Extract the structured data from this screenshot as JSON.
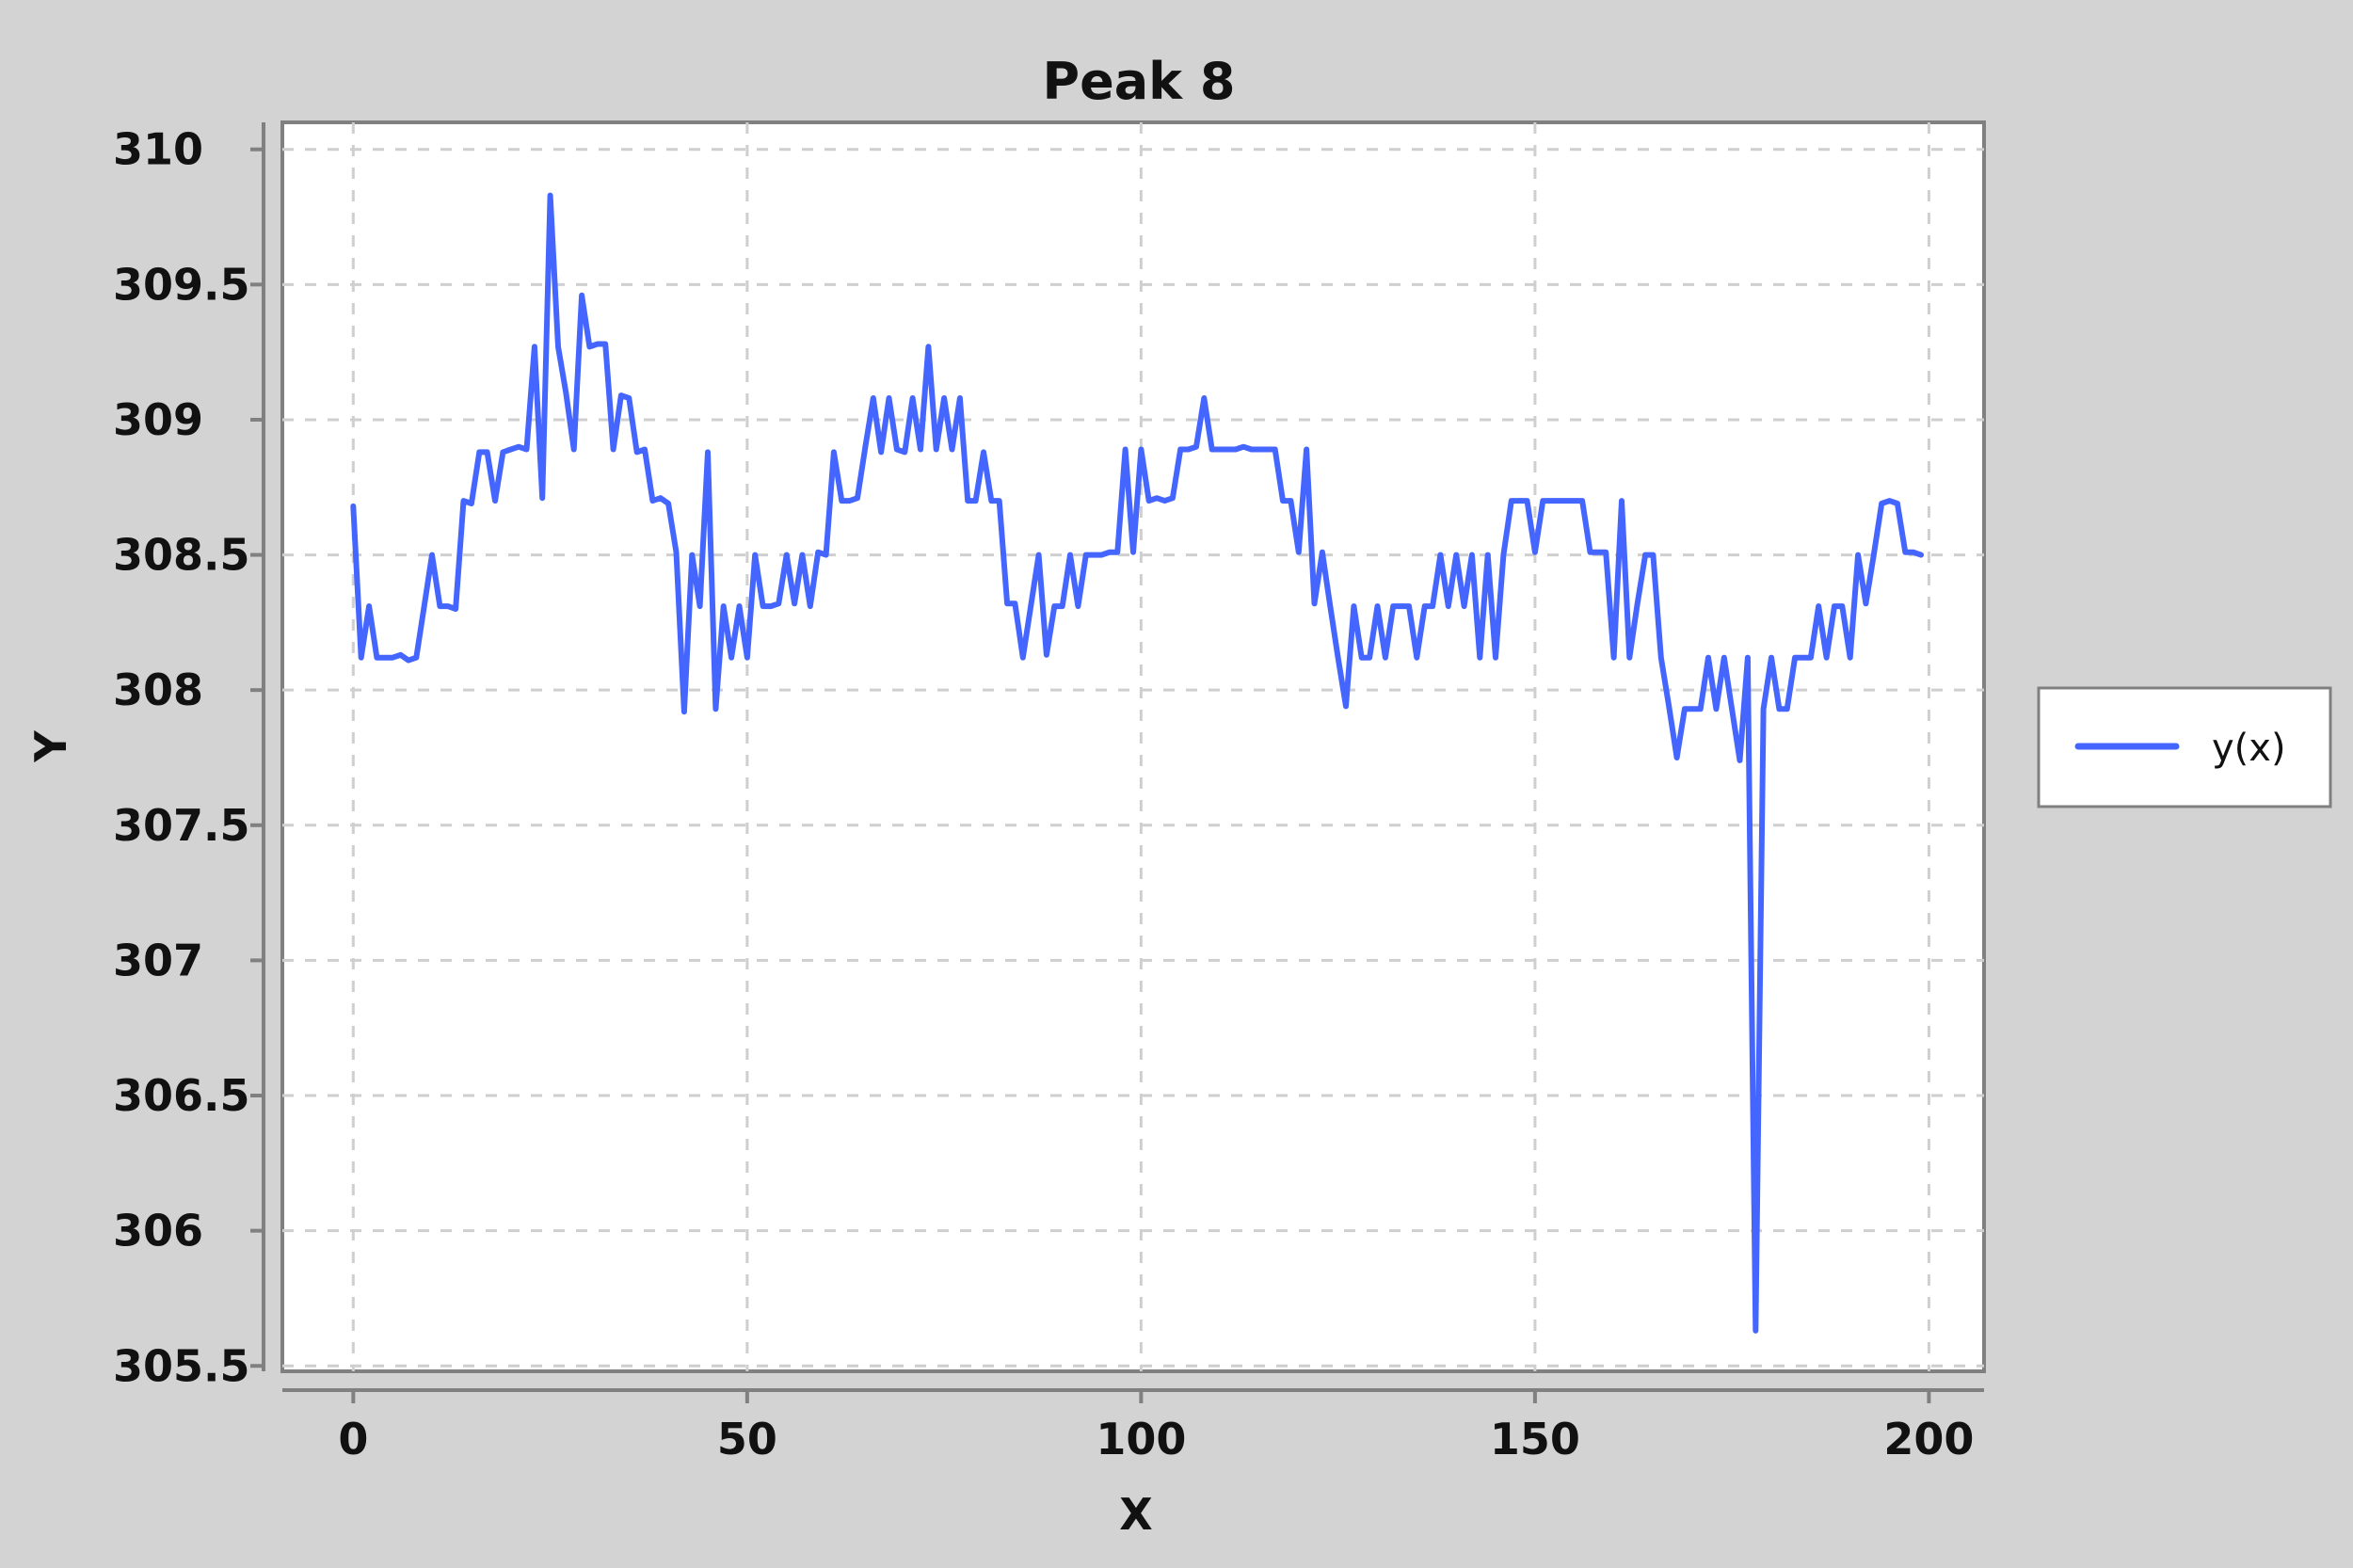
{
  "chart_data": {
    "type": "line",
    "title": "Peak 8",
    "xlabel": "X",
    "ylabel": "Y",
    "xlim": [
      -9,
      207
    ],
    "ylim": [
      305.48,
      310.1
    ],
    "xticks": [
      0,
      50,
      100,
      150,
      200
    ],
    "yticks": [
      305.5,
      306,
      306.5,
      307,
      307.5,
      308,
      308.5,
      309,
      309.5,
      310
    ],
    "xtick_labels": [
      "0",
      "50",
      "100",
      "150",
      "200"
    ],
    "ytick_labels": [
      "305.5",
      "306",
      "306.5",
      "307",
      "307.5",
      "308",
      "308.5",
      "309",
      "309.5",
      "310"
    ],
    "grid": true,
    "legend_position": "right",
    "series": [
      {
        "name": "y(x)",
        "color": "#4466ff",
        "x": [
          0,
          1,
          2,
          3,
          4,
          5,
          6,
          7,
          8,
          9,
          10,
          11,
          12,
          13,
          14,
          15,
          16,
          17,
          18,
          19,
          20,
          21,
          22,
          23,
          24,
          25,
          26,
          27,
          28,
          29,
          30,
          31,
          32,
          33,
          34,
          35,
          36,
          37,
          38,
          39,
          40,
          41,
          42,
          43,
          44,
          45,
          46,
          47,
          48,
          49,
          50,
          51,
          52,
          53,
          54,
          55,
          56,
          57,
          58,
          59,
          60,
          61,
          62,
          63,
          64,
          65,
          66,
          67,
          68,
          69,
          70,
          71,
          72,
          73,
          74,
          75,
          76,
          77,
          78,
          79,
          80,
          81,
          82,
          83,
          84,
          85,
          86,
          87,
          88,
          89,
          90,
          91,
          92,
          93,
          94,
          95,
          96,
          97,
          98,
          99,
          100,
          101,
          102,
          103,
          104,
          105,
          106,
          107,
          108,
          109,
          110,
          111,
          112,
          113,
          114,
          115,
          116,
          117,
          118,
          119,
          120,
          121,
          122,
          123,
          124,
          125,
          126,
          127,
          128,
          129,
          130,
          131,
          132,
          133,
          134,
          135,
          136,
          137,
          138,
          139,
          140,
          141,
          142,
          143,
          144,
          145,
          146,
          147,
          148,
          149,
          150,
          151,
          152,
          153,
          154,
          155,
          156,
          157,
          158,
          159,
          160,
          161,
          162,
          163,
          164,
          165,
          166,
          167,
          168,
          169,
          170,
          171,
          172,
          173,
          174,
          175,
          176,
          177,
          178,
          179,
          180,
          181,
          182,
          183,
          184,
          185,
          186,
          187,
          188,
          189,
          190,
          191,
          192,
          193,
          194,
          195,
          196,
          197,
          198,
          199
        ],
        "y": [
          308.68,
          308.12,
          308.31,
          308.12,
          308.12,
          308.12,
          308.13,
          308.11,
          308.12,
          308.31,
          308.5,
          308.31,
          308.31,
          308.3,
          308.7,
          308.69,
          308.88,
          308.88,
          308.7,
          308.88,
          308.89,
          308.9,
          308.89,
          309.27,
          308.71,
          309.83,
          309.27,
          309.1,
          308.89,
          309.46,
          309.27,
          309.28,
          309.28,
          308.89,
          309.09,
          309.08,
          308.88,
          308.89,
          308.7,
          308.71,
          308.69,
          308.51,
          307.92,
          308.5,
          308.31,
          308.88,
          307.93,
          308.31,
          308.12,
          308.31,
          308.12,
          308.5,
          308.31,
          308.31,
          308.32,
          308.5,
          308.32,
          308.5,
          308.31,
          308.51,
          308.5,
          308.88,
          308.7,
          308.7,
          308.71,
          308.9,
          309.08,
          308.88,
          309.08,
          308.89,
          308.88,
          309.08,
          308.89,
          309.27,
          308.89,
          309.08,
          308.89,
          309.08,
          308.7,
          308.7,
          308.88,
          308.7,
          308.7,
          308.32,
          308.32,
          308.12,
          308.31,
          308.5,
          308.13,
          308.31,
          308.31,
          308.5,
          308.31,
          308.5,
          308.5,
          308.5,
          308.51,
          308.51,
          308.89,
          308.51,
          308.89,
          308.7,
          308.71,
          308.7,
          308.71,
          308.89,
          308.89,
          308.9,
          309.08,
          308.89,
          308.89,
          308.89,
          308.89,
          308.9,
          308.89,
          308.89,
          308.89,
          308.89,
          308.7,
          308.7,
          308.51,
          308.89,
          308.32,
          308.51,
          308.31,
          308.12,
          307.94,
          308.31,
          308.12,
          308.12,
          308.31,
          308.12,
          308.31,
          308.31,
          308.31,
          308.12,
          308.31,
          308.31,
          308.5,
          308.31,
          308.5,
          308.31,
          308.5,
          308.12,
          308.5,
          308.12,
          308.5,
          308.7,
          308.7,
          308.7,
          308.51,
          308.7,
          308.7,
          308.7,
          308.7,
          308.7,
          308.7,
          308.51,
          308.51,
          308.51,
          308.12,
          308.7,
          308.12,
          308.32,
          308.5,
          308.5,
          308.12,
          307.94,
          307.75,
          307.93,
          307.93,
          307.93,
          308.12,
          307.93,
          308.12,
          307.93,
          307.74,
          308.12,
          305.63,
          307.93,
          308.12,
          307.93,
          307.93,
          308.12,
          308.12,
          308.12,
          308.31,
          308.12,
          308.31,
          308.31,
          308.12,
          308.5,
          308.32,
          308.5,
          308.69,
          308.7,
          308.69,
          308.51,
          308.51,
          308.5
        ]
      }
    ]
  }
}
